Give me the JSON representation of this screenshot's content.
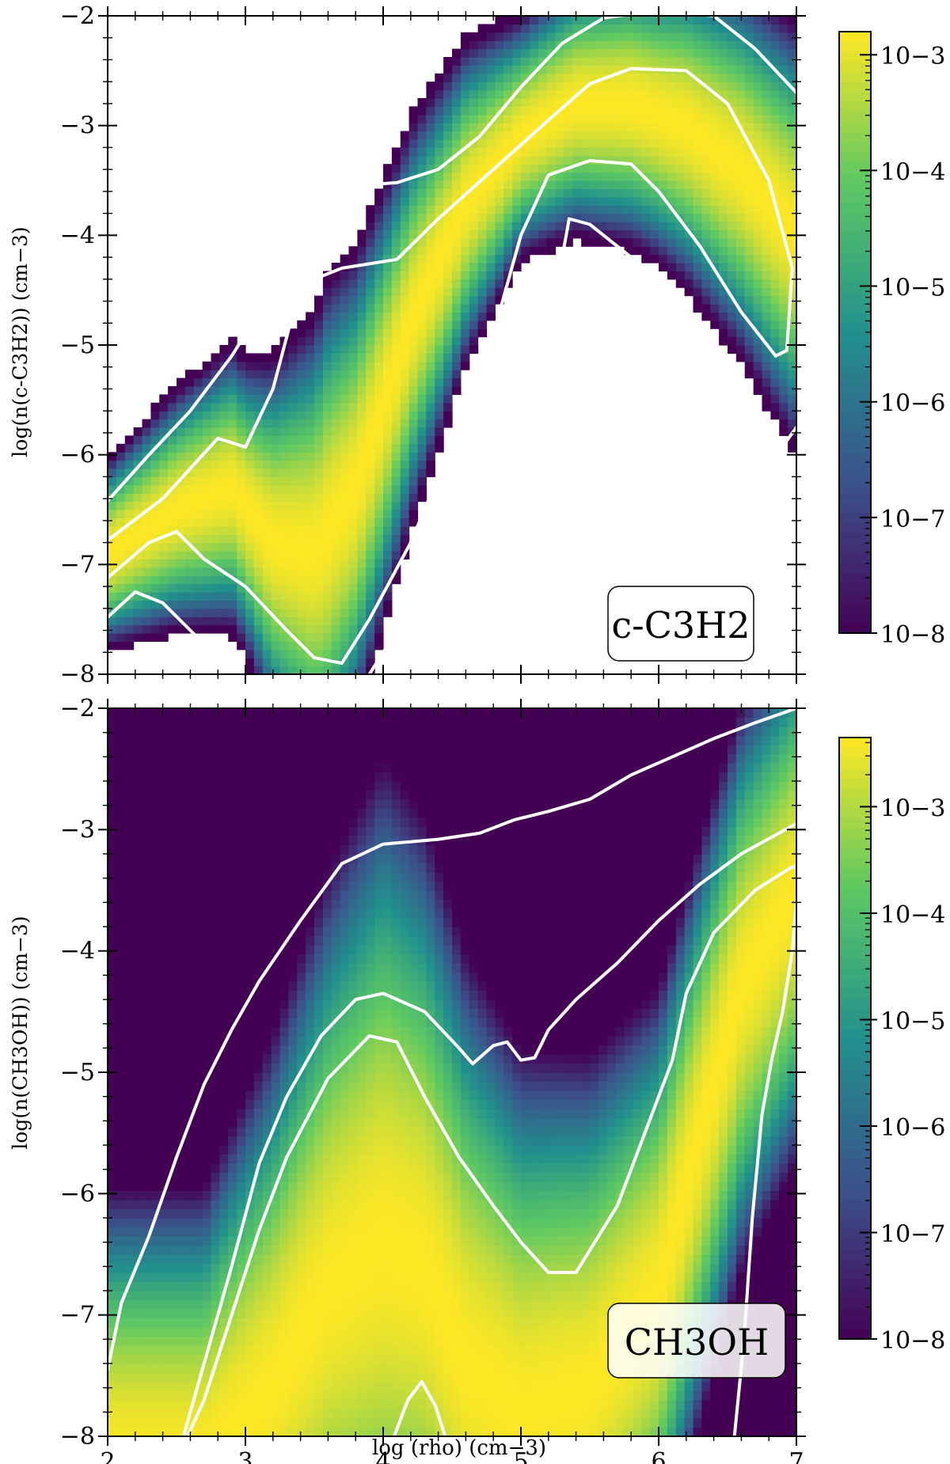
{
  "chart_data": [
    {
      "type": "heatmap",
      "species_label": "c-C3H2",
      "ylabel": "log(n(c-C3H2)) (cm−3)",
      "xlim": [
        2,
        7
      ],
      "ylim": [
        -8,
        -2
      ],
      "x_ticks": [
        "2",
        "3",
        "4",
        "5",
        "6",
        "7"
      ],
      "y_ticks": [
        "−8",
        "−7",
        "−6",
        "−5",
        "−4",
        "−3",
        "−2"
      ],
      "y_tick_values": [
        -8,
        -7,
        -6,
        -5,
        -4,
        -3,
        -2
      ],
      "colorbar": {
        "scale": "log",
        "min_exp": -8,
        "max_exp": -2.8,
        "tick_labels": [
          "10−8",
          "10−7",
          "10−6",
          "10−5",
          "10−4",
          "10−3"
        ],
        "tick_exps": [
          -8,
          -7,
          -6,
          -5,
          -4,
          -3
        ]
      },
      "ridge": [
        [
          2.0,
          -6.9
        ],
        [
          2.5,
          -6.5
        ],
        [
          2.9,
          -6.3
        ],
        [
          3.2,
          -6.8
        ],
        [
          3.5,
          -6.9
        ],
        [
          3.8,
          -6.3
        ],
        [
          4.2,
          -4.8
        ],
        [
          4.6,
          -3.7
        ],
        [
          5.0,
          -3.1
        ],
        [
          5.4,
          -2.8
        ],
        [
          5.8,
          -2.8
        ],
        [
          6.2,
          -3.0
        ],
        [
          6.6,
          -3.4
        ],
        [
          7.0,
          -4.0
        ]
      ],
      "ridge_halfwidth": [
        [
          2.0,
          0.35
        ],
        [
          3.0,
          0.55
        ],
        [
          3.6,
          0.95
        ],
        [
          4.2,
          0.75
        ],
        [
          5.0,
          0.45
        ],
        [
          6.0,
          0.55
        ],
        [
          7.0,
          0.8
        ]
      ],
      "colormap": [
        "#440154",
        "#3b528b",
        "#21908d",
        "#5dc863",
        "#fde725"
      ],
      "contours": [
        [
          [
            2.0,
            -6.42
          ],
          [
            2.3,
            -6.0
          ],
          [
            2.6,
            -5.6
          ],
          [
            2.9,
            -5.1
          ],
          [
            3.1,
            -4.7
          ],
          [
            3.3,
            -4.2
          ],
          [
            3.5,
            -3.85
          ],
          [
            3.8,
            -3.55
          ],
          [
            4.1,
            -3.52
          ],
          [
            4.4,
            -3.4
          ],
          [
            4.7,
            -3.1
          ],
          [
            5.0,
            -2.65
          ],
          [
            5.3,
            -2.25
          ],
          [
            5.6,
            -2.02
          ],
          [
            6.0,
            -1.95
          ],
          [
            6.4,
            -2.0
          ],
          [
            6.7,
            -2.3
          ],
          [
            7.0,
            -2.7
          ]
        ],
        [
          [
            2.0,
            -6.78
          ],
          [
            2.4,
            -6.4
          ],
          [
            2.8,
            -5.85
          ],
          [
            3.0,
            -5.93
          ],
          [
            3.2,
            -5.4
          ],
          [
            3.4,
            -4.45
          ],
          [
            3.7,
            -4.3
          ],
          [
            4.1,
            -4.22
          ],
          [
            4.4,
            -3.85
          ],
          [
            4.8,
            -3.4
          ],
          [
            5.2,
            -2.95
          ],
          [
            5.5,
            -2.62
          ],
          [
            5.8,
            -2.48
          ],
          [
            6.2,
            -2.5
          ],
          [
            6.5,
            -2.8
          ],
          [
            6.8,
            -3.5
          ],
          [
            6.97,
            -4.3
          ],
          [
            6.93,
            -5.05
          ],
          [
            6.85,
            -5.1
          ],
          [
            6.6,
            -4.7
          ],
          [
            6.3,
            -4.1
          ],
          [
            6.0,
            -3.6
          ],
          [
            5.8,
            -3.35
          ],
          [
            5.5,
            -3.32
          ],
          [
            5.2,
            -3.45
          ],
          [
            5.0,
            -4.0
          ],
          [
            4.8,
            -4.9
          ],
          [
            4.5,
            -5.9
          ],
          [
            4.2,
            -6.8
          ],
          [
            3.9,
            -7.5
          ],
          [
            3.7,
            -7.9
          ],
          [
            3.5,
            -7.85
          ],
          [
            3.3,
            -7.6
          ],
          [
            3.0,
            -7.2
          ],
          [
            2.7,
            -6.95
          ],
          [
            2.5,
            -6.7
          ],
          [
            2.3,
            -6.8
          ],
          [
            2.0,
            -7.12
          ]
        ],
        [
          [
            2.0,
            -7.48
          ],
          [
            2.2,
            -7.25
          ],
          [
            2.4,
            -7.35
          ],
          [
            2.6,
            -7.6
          ],
          [
            2.8,
            -7.85
          ],
          [
            2.9,
            -8.0
          ]
        ],
        [
          [
            3.9,
            -8.0
          ],
          [
            4.1,
            -7.6
          ],
          [
            4.3,
            -7.2
          ],
          [
            4.5,
            -6.75
          ],
          [
            4.7,
            -6.2
          ],
          [
            4.9,
            -5.45
          ],
          [
            5.1,
            -4.8
          ],
          [
            5.3,
            -4.2
          ],
          [
            5.35,
            -3.85
          ],
          [
            5.5,
            -3.9
          ],
          [
            5.8,
            -4.2
          ],
          [
            6.1,
            -4.8
          ],
          [
            6.4,
            -5.6
          ],
          [
            6.6,
            -6.0
          ],
          [
            6.8,
            -6.1
          ],
          [
            7.0,
            -5.75
          ]
        ]
      ]
    },
    {
      "type": "heatmap",
      "species_label": "CH3OH",
      "ylabel": "log(n(CH3OH)) (cm−3)",
      "xlabel": "log (rho) (cm−3)",
      "xlim": [
        2,
        7
      ],
      "ylim": [
        -8,
        -2
      ],
      "x_ticks": [
        "2",
        "3",
        "4",
        "5",
        "6",
        "7"
      ],
      "y_ticks": [
        "−8",
        "−7",
        "−6",
        "−5",
        "−4",
        "−3",
        "−2"
      ],
      "y_tick_values": [
        -8,
        -7,
        -6,
        -5,
        -4,
        -3,
        -2
      ],
      "colorbar": {
        "scale": "log",
        "min_exp": -8,
        "max_exp": -2.35,
        "tick_labels": [
          "10−8",
          "10−7",
          "10−6",
          "10−5",
          "10−4",
          "10−3"
        ],
        "tick_exps": [
          -8,
          -7,
          -6,
          -5,
          -4,
          -3
        ]
      },
      "ridge": [
        [
          2.7,
          -8.2
        ],
        [
          3.2,
          -7.6
        ],
        [
          3.6,
          -6.8
        ],
        [
          4.0,
          -6.4
        ],
        [
          4.3,
          -6.6
        ],
        [
          4.6,
          -7.4
        ],
        [
          5.0,
          -7.8
        ],
        [
          5.5,
          -7.6
        ],
        [
          6.0,
          -6.8
        ],
        [
          6.3,
          -5.5
        ],
        [
          6.6,
          -4.3
        ],
        [
          7.0,
          -3.5
        ]
      ],
      "ridge_halfwidth": [
        [
          2.7,
          0.9
        ],
        [
          4.0,
          1.6
        ],
        [
          5.0,
          1.2
        ],
        [
          6.0,
          1.0
        ],
        [
          7.0,
          0.9
        ]
      ],
      "colormap": [
        "#440154",
        "#3b528b",
        "#21908d",
        "#5dc863",
        "#fde725"
      ],
      "contours": [
        [
          [
            2.0,
            -7.45
          ],
          [
            2.1,
            -6.9
          ],
          [
            2.3,
            -6.35
          ],
          [
            2.5,
            -5.7
          ],
          [
            2.7,
            -5.1
          ],
          [
            2.9,
            -4.65
          ],
          [
            3.1,
            -4.25
          ],
          [
            3.4,
            -3.75
          ],
          [
            3.7,
            -3.28
          ],
          [
            4.0,
            -3.12
          ],
          [
            4.4,
            -3.08
          ],
          [
            4.7,
            -3.03
          ],
          [
            4.95,
            -2.92
          ],
          [
            5.2,
            -2.85
          ],
          [
            5.5,
            -2.75
          ],
          [
            5.8,
            -2.55
          ],
          [
            6.1,
            -2.4
          ],
          [
            6.4,
            -2.25
          ],
          [
            6.7,
            -2.12
          ],
          [
            7.0,
            -2.0
          ]
        ],
        [
          [
            2.55,
            -8.0
          ],
          [
            2.7,
            -7.4
          ],
          [
            2.9,
            -6.6
          ],
          [
            3.1,
            -5.75
          ],
          [
            3.3,
            -5.2
          ],
          [
            3.55,
            -4.7
          ],
          [
            3.8,
            -4.4
          ],
          [
            4.0,
            -4.35
          ],
          [
            4.3,
            -4.5
          ],
          [
            4.55,
            -4.8
          ],
          [
            4.65,
            -4.93
          ],
          [
            4.8,
            -4.78
          ],
          [
            4.9,
            -4.75
          ],
          [
            5.0,
            -4.9
          ],
          [
            5.1,
            -4.88
          ],
          [
            5.2,
            -4.65
          ],
          [
            5.4,
            -4.4
          ],
          [
            5.7,
            -4.1
          ],
          [
            6.0,
            -3.75
          ],
          [
            6.3,
            -3.45
          ],
          [
            6.6,
            -3.2
          ],
          [
            7.0,
            -2.95
          ]
        ],
        [
          [
            2.58,
            -8.0
          ],
          [
            2.7,
            -7.7
          ],
          [
            2.9,
            -7.0
          ],
          [
            3.1,
            -6.3
          ],
          [
            3.3,
            -5.7
          ],
          [
            3.6,
            -5.05
          ],
          [
            3.9,
            -4.7
          ],
          [
            4.1,
            -4.75
          ],
          [
            4.3,
            -5.2
          ],
          [
            4.55,
            -5.7
          ],
          [
            4.8,
            -6.1
          ],
          [
            5.0,
            -6.4
          ],
          [
            5.2,
            -6.65
          ],
          [
            5.4,
            -6.65
          ],
          [
            5.7,
            -6.1
          ],
          [
            5.9,
            -5.5
          ],
          [
            6.1,
            -4.9
          ],
          [
            6.2,
            -4.35
          ],
          [
            6.4,
            -3.85
          ],
          [
            6.7,
            -3.5
          ],
          [
            6.95,
            -3.32
          ],
          [
            7.0,
            -3.3
          ]
        ],
        [
          [
            6.55,
            -8.0
          ],
          [
            6.62,
            -7.2
          ],
          [
            6.68,
            -6.2
          ],
          [
            6.75,
            -5.35
          ],
          [
            6.82,
            -4.9
          ],
          [
            6.9,
            -4.5
          ],
          [
            6.97,
            -4.0
          ],
          [
            7.0,
            -3.6
          ]
        ],
        [
          [
            4.08,
            -8.0
          ],
          [
            4.18,
            -7.7
          ],
          [
            4.28,
            -7.55
          ],
          [
            4.38,
            -7.75
          ],
          [
            4.45,
            -8.0
          ]
        ]
      ]
    }
  ]
}
